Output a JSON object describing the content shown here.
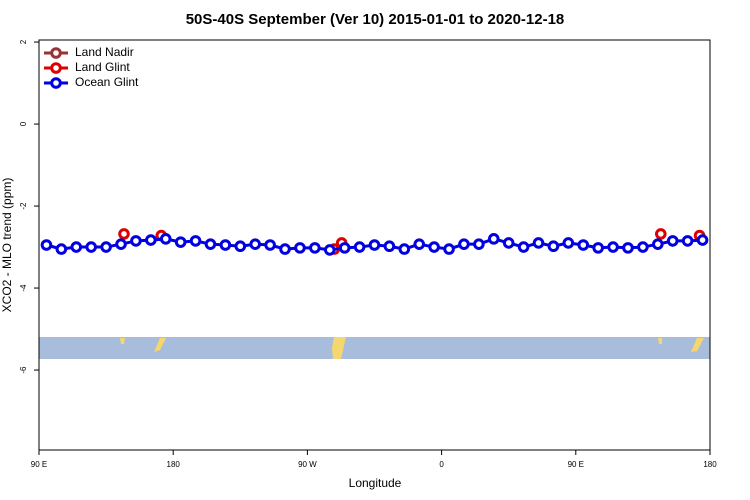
{
  "chart_data": {
    "type": "line",
    "title": "50S-40S September (Ver 10)   2015-01-01 to 2020-12-18",
    "xlabel": "Longitude",
    "ylabel": "XCO2 - MLO trend (ppm)",
    "xlim": [
      90,
      540
    ],
    "ylim": [
      -7.95,
      2.05
    ],
    "xticks": [
      {
        "value": 90,
        "label": "90 E"
      },
      {
        "value": 180,
        "label": "180"
      },
      {
        "value": 270,
        "label": "90 W"
      },
      {
        "value": 360,
        "label": "0"
      },
      {
        "value": 450,
        "label": "90 E"
      },
      {
        "value": 540,
        "label": "180"
      }
    ],
    "yticks": [
      2,
      0,
      -2,
      -4,
      -6
    ],
    "legend": "top-left",
    "series": [
      {
        "name": "Land Nadir",
        "color": "#993333",
        "lines": true,
        "x": [],
        "values": []
      },
      {
        "name": "Land Glint",
        "color": "#e00000",
        "lines": false,
        "x": [
          147,
          172,
          288,
          293,
          507,
          533
        ],
        "values": [
          -2.68,
          -2.72,
          -3.05,
          -2.9,
          -2.68,
          -2.72
        ]
      },
      {
        "name": "Ocean Glint",
        "color": "#0000e0",
        "lines": true,
        "x": [
          95,
          105,
          115,
          125,
          135,
          145,
          155,
          165,
          175,
          185,
          195,
          205,
          215,
          225,
          235,
          245,
          255,
          265,
          275,
          285,
          295,
          305,
          315,
          325,
          335,
          345,
          355,
          365,
          375,
          385,
          395,
          405,
          415,
          425,
          435,
          445,
          455,
          465,
          475,
          485,
          495,
          505,
          515,
          525,
          535
        ],
        "values": [
          -2.95,
          -3.05,
          -3.0,
          -3.0,
          -3.0,
          -2.93,
          -2.85,
          -2.83,
          -2.8,
          -2.88,
          -2.85,
          -2.93,
          -2.95,
          -2.98,
          -2.93,
          -2.95,
          -3.05,
          -3.02,
          -3.02,
          -3.07,
          -3.02,
          -3.0,
          -2.95,
          -2.98,
          -3.05,
          -2.93,
          -3.0,
          -3.05,
          -2.93,
          -2.93,
          -2.8,
          -2.9,
          -3.0,
          -2.9,
          -2.98,
          -2.9,
          -2.95,
          -3.02,
          -3.0,
          -3.02,
          -3.0,
          -2.93,
          -2.85,
          -2.85,
          -2.83
        ]
      }
    ]
  }
}
